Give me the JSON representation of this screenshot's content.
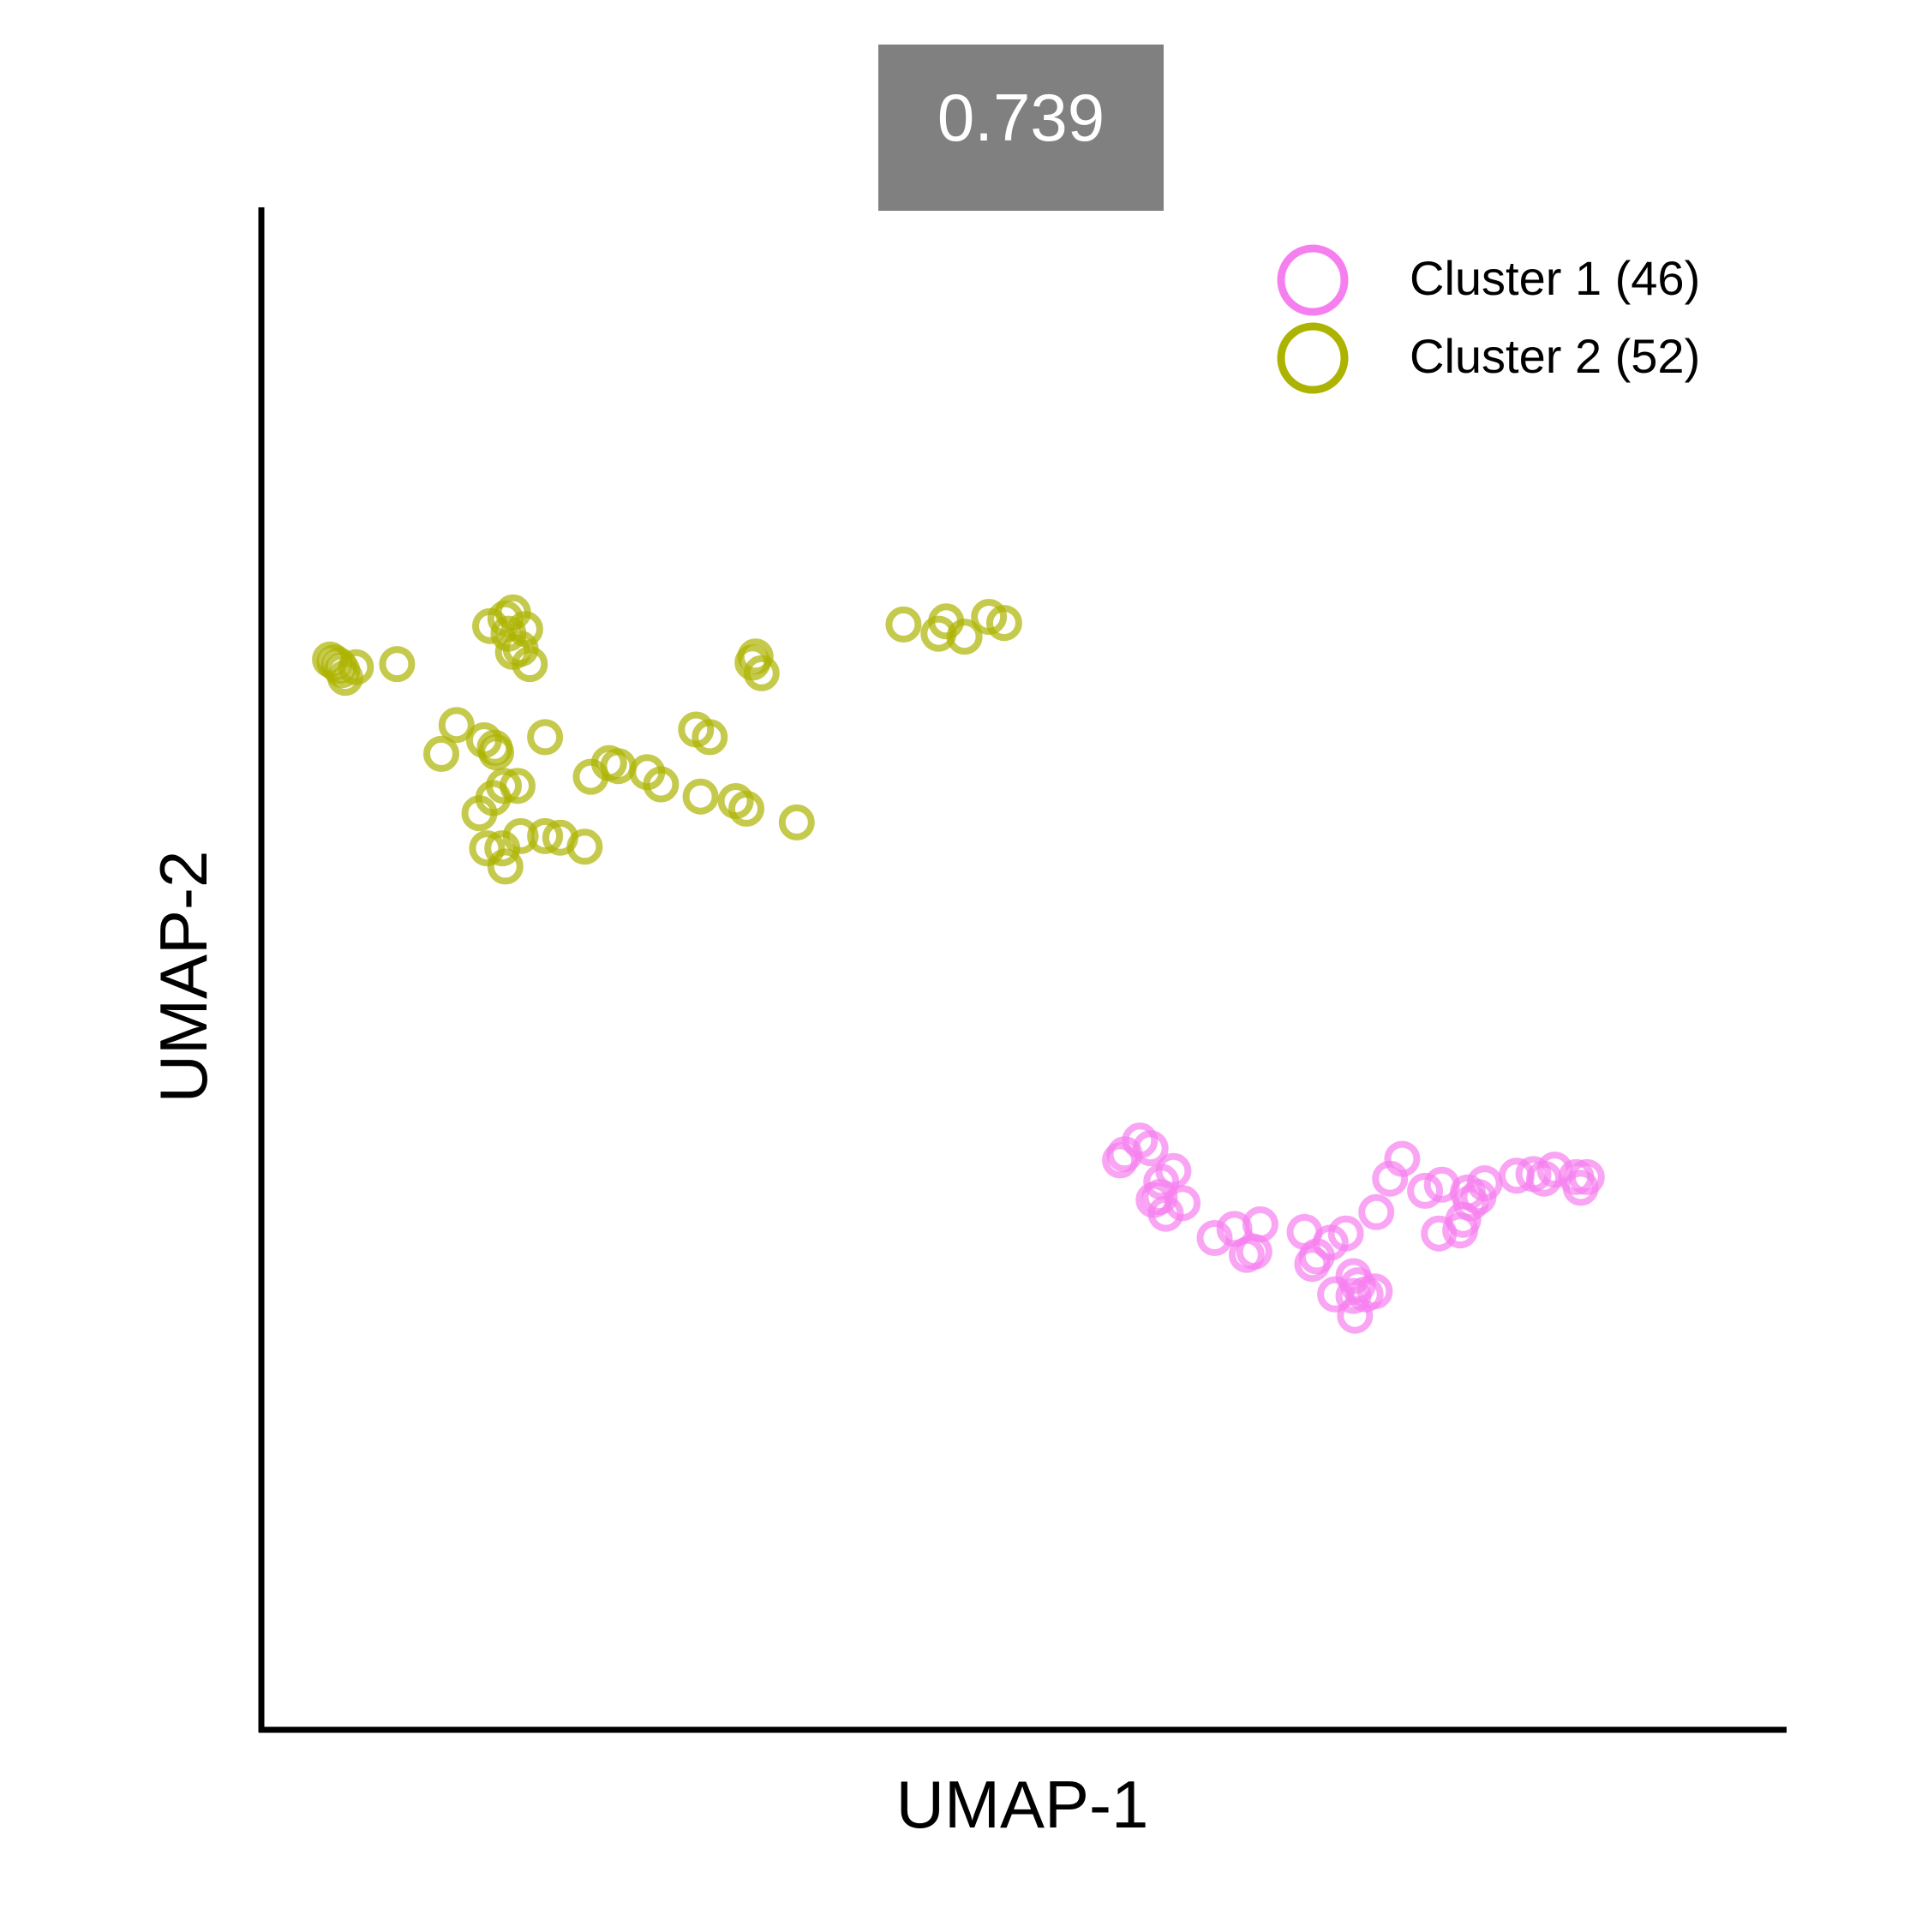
{
  "chart_data": {
    "type": "scatter",
    "title": "0.739",
    "title_box_color": "#808080",
    "title_text_color": "#ffffff",
    "xlabel": "UMAP-1",
    "ylabel": "UMAP-2",
    "xlim": [
      0,
      100
    ],
    "ylim": [
      0,
      100
    ],
    "grid": false,
    "ticks": false,
    "legend_position": "top-right",
    "series": [
      {
        "name": "Cluster 1 (46)",
        "color": "#f67ff0",
        "marker": "open-circle",
        "points": [
          [
            56.3,
            37.4
          ],
          [
            57.6,
            38.7
          ],
          [
            58.3,
            38.2
          ],
          [
            56.6,
            37.8
          ],
          [
            59.0,
            36.0
          ],
          [
            59.8,
            36.7
          ],
          [
            58.9,
            35.0
          ],
          [
            58.5,
            34.8
          ],
          [
            60.4,
            34.6
          ],
          [
            59.3,
            33.9
          ],
          [
            62.5,
            32.3
          ],
          [
            63.8,
            32.9
          ],
          [
            65.5,
            33.2
          ],
          [
            64.6,
            31.2
          ],
          [
            65.1,
            31.4
          ],
          [
            68.4,
            32.7
          ],
          [
            70.1,
            32.0
          ],
          [
            71.1,
            32.6
          ],
          [
            68.9,
            30.6
          ],
          [
            69.2,
            31.1
          ],
          [
            70.4,
            28.6
          ],
          [
            71.6,
            29.8
          ],
          [
            71.6,
            28.5
          ],
          [
            71.9,
            29.2
          ],
          [
            72.4,
            28.6
          ],
          [
            73.0,
            28.8
          ],
          [
            71.7,
            27.2
          ],
          [
            73.1,
            34.0
          ],
          [
            74.0,
            36.2
          ],
          [
            74.8,
            37.5
          ],
          [
            76.3,
            35.4
          ],
          [
            77.4,
            35.8
          ],
          [
            77.2,
            32.6
          ],
          [
            78.6,
            32.8
          ],
          [
            78.8,
            33.5
          ],
          [
            79.1,
            35.3
          ],
          [
            79.3,
            34.6
          ],
          [
            79.8,
            35.0
          ],
          [
            80.2,
            35.9
          ],
          [
            82.3,
            36.4
          ],
          [
            83.4,
            36.5
          ],
          [
            84.1,
            36.2
          ],
          [
            84.8,
            36.8
          ],
          [
            86.2,
            36.3
          ],
          [
            86.5,
            35.6
          ],
          [
            86.9,
            36.3
          ]
        ]
      },
      {
        "name": "Cluster 2 (52)",
        "color": "#acb300",
        "marker": "open-circle",
        "points": [
          [
            4.5,
            70.3
          ],
          [
            4.8,
            70.1
          ],
          [
            5.1,
            69.9
          ],
          [
            5.3,
            69.6
          ],
          [
            5.5,
            69.1
          ],
          [
            6.2,
            69.8
          ],
          [
            8.9,
            70.0
          ],
          [
            12.8,
            66.0
          ],
          [
            11.8,
            64.1
          ],
          [
            15.0,
            72.5
          ],
          [
            16.2,
            72.0
          ],
          [
            16.0,
            73.0
          ],
          [
            16.5,
            73.4
          ],
          [
            17.3,
            72.3
          ],
          [
            17.0,
            71.0
          ],
          [
            16.5,
            70.8
          ],
          [
            17.6,
            70.0
          ],
          [
            14.6,
            65.0
          ],
          [
            15.3,
            64.5
          ],
          [
            15.4,
            64.2
          ],
          [
            18.6,
            65.2
          ],
          [
            15.9,
            62.0
          ],
          [
            15.2,
            61.2
          ],
          [
            14.3,
            60.2
          ],
          [
            16.8,
            62.0
          ],
          [
            14.8,
            57.9
          ],
          [
            15.8,
            57.9
          ],
          [
            16.0,
            56.7
          ],
          [
            17.0,
            58.7
          ],
          [
            18.6,
            58.7
          ],
          [
            19.6,
            58.6
          ],
          [
            21.2,
            58.0
          ],
          [
            21.6,
            62.6
          ],
          [
            22.8,
            63.5
          ],
          [
            23.4,
            63.3
          ],
          [
            25.3,
            62.9
          ],
          [
            26.2,
            62.1
          ],
          [
            28.5,
            65.7
          ],
          [
            29.4,
            65.2
          ],
          [
            28.8,
            61.3
          ],
          [
            31.1,
            61.0
          ],
          [
            31.8,
            60.5
          ],
          [
            35.1,
            59.6
          ],
          [
            32.2,
            70.1
          ],
          [
            32.4,
            70.5
          ],
          [
            32.8,
            69.4
          ],
          [
            42.1,
            72.6
          ],
          [
            44.4,
            72.0
          ],
          [
            44.9,
            72.8
          ],
          [
            46.1,
            71.8
          ],
          [
            47.7,
            73.1
          ],
          [
            48.7,
            72.7
          ]
        ]
      }
    ]
  }
}
